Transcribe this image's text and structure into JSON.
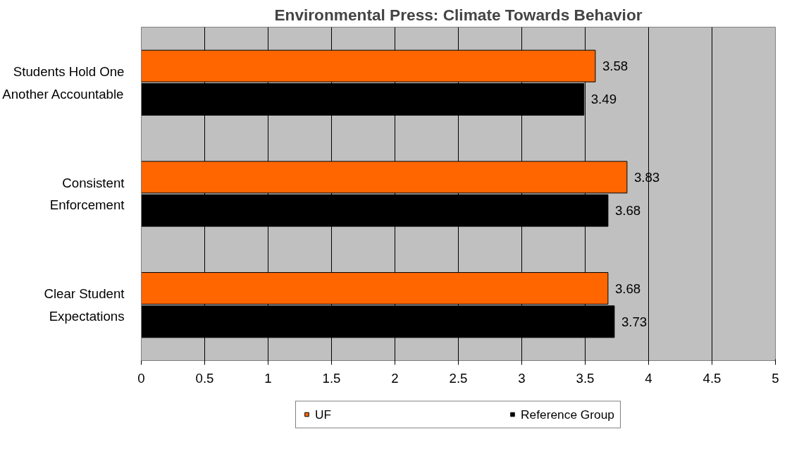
{
  "chart_data": {
    "type": "bar",
    "orientation": "horizontal",
    "title": "Environmental Press: Climate Towards Behavior",
    "categories": [
      "Students Hold One Another Accountable",
      "Consistent Enforcement",
      "Clear Student Expectations"
    ],
    "series": [
      {
        "name": "UF",
        "color": "#ff6600",
        "values": [
          3.58,
          3.83,
          3.68
        ]
      },
      {
        "name": "Reference Group",
        "color": "#000000",
        "values": [
          3.49,
          3.68,
          3.73
        ]
      }
    ],
    "xlim": [
      0,
      5
    ],
    "xticks": [
      0,
      0.5,
      1,
      1.5,
      2,
      2.5,
      3,
      3.5,
      4,
      4.5,
      5
    ],
    "grid": "x",
    "legend": "bottom",
    "data_labels": true
  }
}
